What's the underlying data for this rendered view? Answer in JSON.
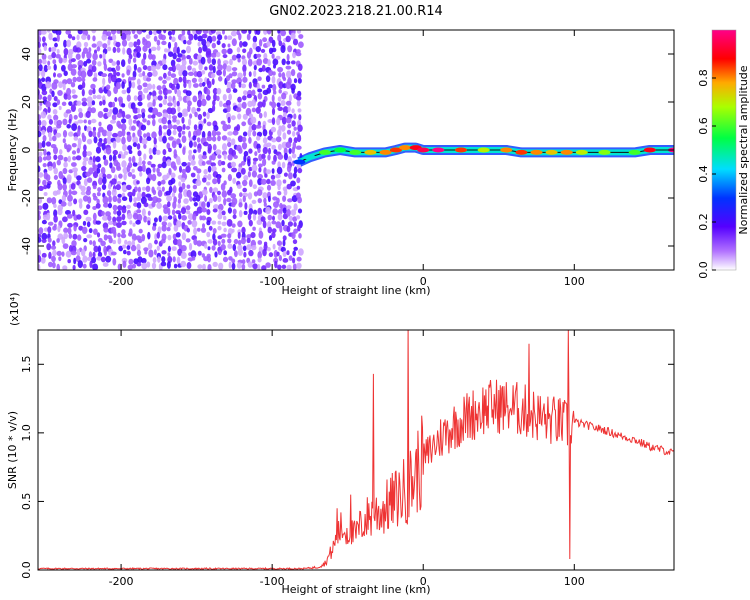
{
  "title": "GN02.2023.218.21.00.R14",
  "chart_data": [
    {
      "type": "heatmap",
      "xlabel": "Height of straight line (km)",
      "ylabel": "Frequency (Hz)",
      "xlim": [
        -255,
        166
      ],
      "ylim": [
        -50,
        50
      ],
      "xticks": [
        -200,
        -100,
        0,
        100
      ],
      "yticks": [
        -40,
        -20,
        0,
        20,
        40
      ],
      "colorbar": {
        "label": "Normalized spectral amplitude",
        "range": [
          0,
          1
        ],
        "ticks": [
          0.0,
          0.2,
          0.4,
          0.6,
          0.8
        ],
        "colormap": "rainbow (purple-blue-cyan-green-yellow-red-magenta)"
      },
      "noise_region_x": [
        -255,
        -82
      ],
      "signal_track": {
        "x": [
          -82,
          -75,
          -65,
          -55,
          -45,
          -35,
          -25,
          -18,
          -12,
          -5,
          0,
          10,
          25,
          40,
          55,
          65,
          75,
          85,
          95,
          105,
          120,
          140,
          150,
          166
        ],
        "frequency": [
          -5,
          -3,
          -1,
          0,
          -1,
          -1,
          -1,
          0,
          1,
          1,
          0,
          0,
          0,
          0,
          0,
          -1,
          -1,
          -1,
          -1,
          -1,
          -1,
          -1,
          0,
          0
        ],
        "peak_amplitude": [
          0.3,
          0.45,
          0.6,
          0.55,
          0.6,
          0.75,
          0.8,
          0.85,
          0.8,
          0.9,
          0.95,
          1.0,
          0.85,
          0.7,
          0.8,
          0.85,
          0.8,
          0.75,
          0.8,
          0.7,
          0.65,
          0.6,
          0.9,
          1.0
        ]
      }
    },
    {
      "type": "line",
      "xlabel": "Height of straight line (km)",
      "ylabel": "SNR (10 * v/v)",
      "y_multiplier": "(x10⁴)",
      "xlim": [
        -255,
        166
      ],
      "ylim": [
        0,
        1.75
      ],
      "xticks": [
        -200,
        -100,
        0,
        100
      ],
      "yticks": [
        0.0,
        0.5,
        1.0,
        1.5
      ],
      "series": [
        {
          "color": "#ee3333",
          "x": [
            -255,
            -200,
            -150,
            -110,
            -80,
            -70,
            -65,
            -60,
            -55,
            -50,
            -45,
            -40,
            -35,
            -30,
            -25,
            -20,
            -15,
            -10,
            -5,
            0,
            10,
            20,
            30,
            40,
            50,
            60,
            70,
            80,
            90,
            96,
            100,
            110,
            120,
            130,
            140,
            150,
            160,
            166
          ],
          "y": [
            0.01,
            0.01,
            0.01,
            0.01,
            0.01,
            0.02,
            0.05,
            0.15,
            0.3,
            0.28,
            0.25,
            0.35,
            0.4,
            0.42,
            0.45,
            0.5,
            0.55,
            0.6,
            0.7,
            0.8,
            0.95,
            1.05,
            1.12,
            1.18,
            1.2,
            1.18,
            1.15,
            1.1,
            1.08,
            1.05,
            1.08,
            1.05,
            1.02,
            0.98,
            0.95,
            0.9,
            0.87,
            0.85
          ],
          "spikes": [
            {
              "x": -57,
              "y": 0.45
            },
            {
              "x": -48,
              "y": 0.55
            },
            {
              "x": -33,
              "y": 1.43
            },
            {
              "x": -10,
              "y": 1.78
            },
            {
              "x": 70,
              "y": 1.65
            },
            {
              "x": 96,
              "y": 1.75
            },
            {
              "x": 97,
              "y": 0.08
            }
          ]
        }
      ]
    }
  ]
}
